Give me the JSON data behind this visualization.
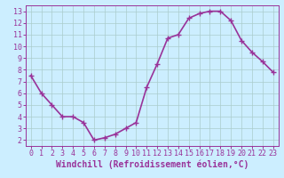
{
  "x": [
    0,
    1,
    2,
    3,
    4,
    5,
    6,
    7,
    8,
    9,
    10,
    11,
    12,
    13,
    14,
    15,
    16,
    17,
    18,
    19,
    20,
    21,
    22,
    23
  ],
  "y": [
    7.5,
    6.0,
    5.0,
    4.0,
    4.0,
    3.5,
    2.0,
    2.2,
    2.5,
    3.0,
    3.5,
    6.5,
    8.5,
    10.7,
    11.0,
    12.4,
    12.8,
    13.0,
    13.0,
    12.2,
    10.5,
    9.5,
    8.7,
    7.8
  ],
  "line_color": "#993399",
  "marker": "+",
  "marker_size": 5,
  "bg_color": "#cceeff",
  "grid_color": "#aacccc",
  "xlabel": "Windchill (Refroidissement éolien,°C)",
  "xlabel_color": "#993399",
  "xlabel_fontsize": 7,
  "tick_fontsize": 6,
  "tick_color": "#993399",
  "ylim": [
    1.5,
    13.5
  ],
  "xlim": [
    -0.5,
    23.5
  ],
  "yticks": [
    2,
    3,
    4,
    5,
    6,
    7,
    8,
    9,
    10,
    11,
    12,
    13
  ],
  "xticks": [
    0,
    1,
    2,
    3,
    4,
    5,
    6,
    7,
    8,
    9,
    10,
    11,
    12,
    13,
    14,
    15,
    16,
    17,
    18,
    19,
    20,
    21,
    22,
    23
  ],
  "line_width": 1.2,
  "spine_color": "#993399",
  "fig_width": 3.2,
  "fig_height": 2.0,
  "dpi": 100
}
